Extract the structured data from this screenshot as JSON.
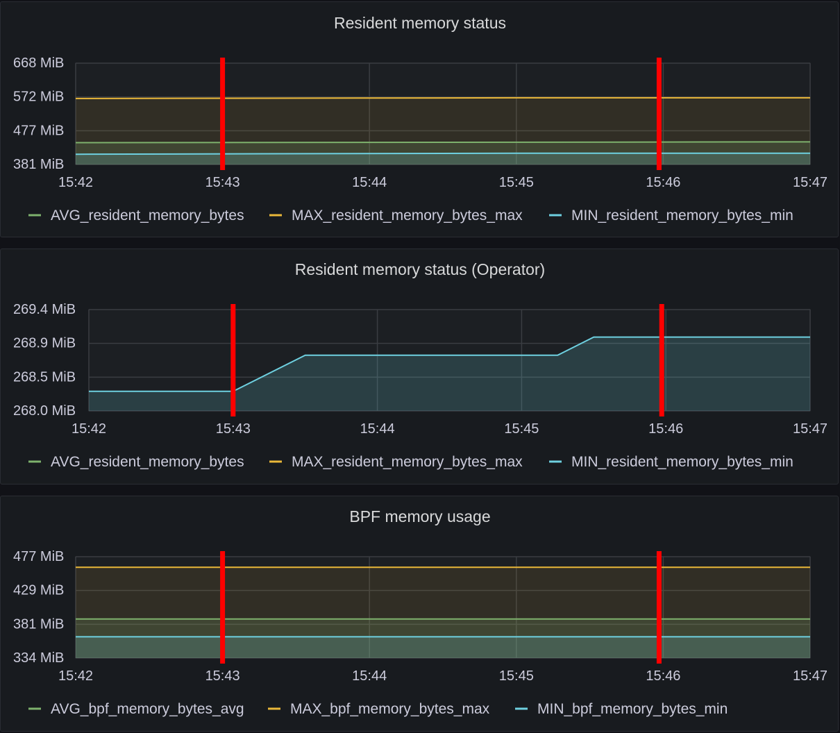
{
  "colors": {
    "avg": "#7eb26d",
    "max": "#eab839",
    "min": "#6ed0e0",
    "marker": "#ff0000"
  },
  "chart_data": [
    {
      "type": "line",
      "title": "Resident memory status",
      "xticks": [
        "15:42",
        "15:43",
        "15:44",
        "15:45",
        "15:46",
        "15:47"
      ],
      "yticks": [
        "668 MiB",
        "572 MiB",
        "477 MiB",
        "381 MiB"
      ],
      "ylim": [
        381,
        668
      ],
      "yunit": "MiB",
      "x_range": [
        "15:42",
        "15:47"
      ],
      "series": [
        {
          "name": "AVG_resident_memory_bytes",
          "x": [
            "15:42",
            "15:47"
          ],
          "values": [
            443,
            445
          ]
        },
        {
          "name": "MAX_resident_memory_bytes_max",
          "x": [
            "15:42",
            "15:45",
            "15:47"
          ],
          "values": [
            568,
            570,
            570
          ]
        },
        {
          "name": "MIN_resident_memory_bytes_min",
          "x": [
            "15:42",
            "15:45",
            "15:47"
          ],
          "values": [
            410,
            413,
            413
          ]
        }
      ],
      "markers": [
        "15:43",
        "15:46"
      ],
      "grid": true,
      "legend_position": "bottom"
    },
    {
      "type": "line",
      "title": "Resident memory status (Operator)",
      "xticks": [
        "15:42",
        "15:43",
        "15:44",
        "15:45",
        "15:46",
        "15:47"
      ],
      "yticks": [
        "269.4 MiB",
        "268.9 MiB",
        "268.5 MiB",
        "268.0 MiB"
      ],
      "ylim": [
        268.0,
        269.4
      ],
      "yunit": "MiB",
      "x_range": [
        "15:42",
        "15:47"
      ],
      "series": [
        {
          "name": "AVG_resident_memory_bytes",
          "x": [],
          "values": []
        },
        {
          "name": "MAX_resident_memory_bytes_max",
          "x": [],
          "values": []
        },
        {
          "name": "MIN_resident_memory_bytes_min",
          "x": [
            "15:42",
            "15:43",
            "15:43:30",
            "15:45:15",
            "15:45:30",
            "15:47"
          ],
          "values": [
            268.27,
            268.27,
            268.77,
            268.77,
            269.02,
            269.02
          ]
        }
      ],
      "markers": [
        "15:43",
        "15:46"
      ],
      "grid": true,
      "legend_position": "bottom"
    },
    {
      "type": "line",
      "title": "BPF memory usage",
      "xticks": [
        "15:42",
        "15:43",
        "15:44",
        "15:45",
        "15:46",
        "15:47"
      ],
      "yticks": [
        "477 MiB",
        "429 MiB",
        "381 MiB",
        "334 MiB"
      ],
      "ylim": [
        334,
        477
      ],
      "yunit": "MiB",
      "x_range": [
        "15:42",
        "15:47"
      ],
      "series": [
        {
          "name": "AVG_bpf_memory_bytes_avg",
          "x": [
            "15:42",
            "15:47"
          ],
          "values": [
            389,
            389
          ]
        },
        {
          "name": "MAX_bpf_memory_bytes_max",
          "x": [
            "15:42",
            "15:47"
          ],
          "values": [
            462,
            462
          ]
        },
        {
          "name": "MIN_bpf_memory_bytes_min",
          "x": [
            "15:42",
            "15:47"
          ],
          "values": [
            364,
            364
          ]
        }
      ],
      "markers": [
        "15:43",
        "15:46"
      ],
      "grid": true,
      "legend_position": "bottom"
    }
  ]
}
